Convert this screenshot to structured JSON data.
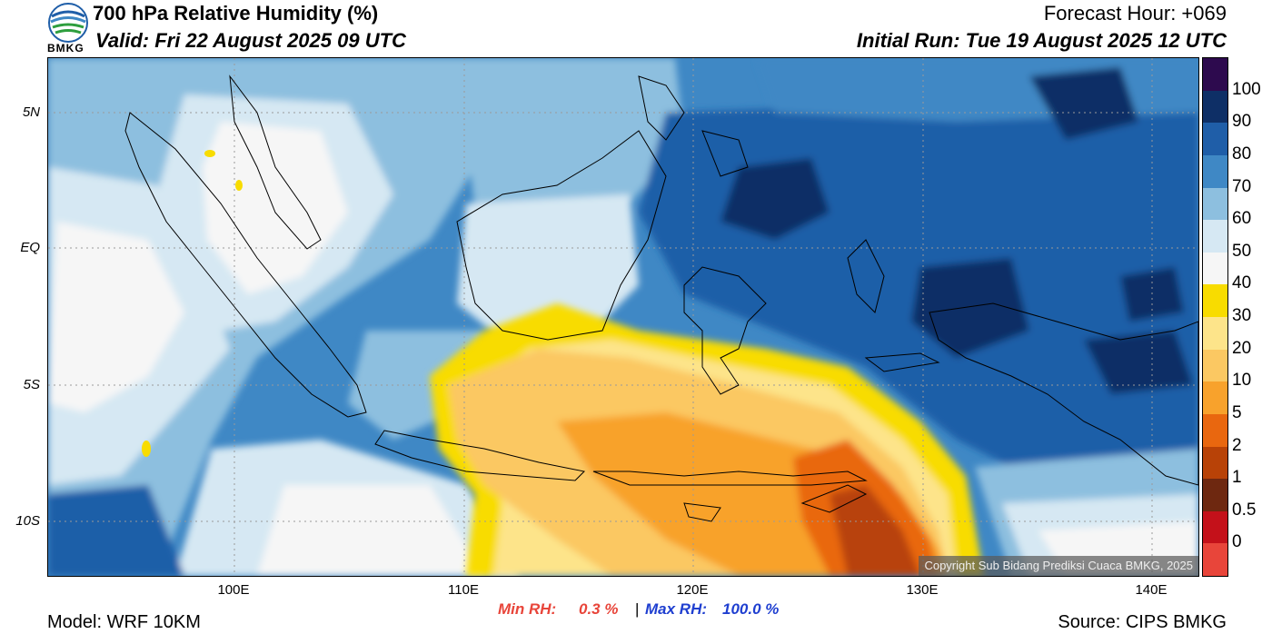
{
  "header": {
    "title": "700 hPa Relative Humidity (%)",
    "valid": "Valid: Fri 22 August 2025 09 UTC",
    "forecast_hour": "Forecast Hour: +069",
    "initial_run": "Initial Run: Tue 19 August 2025 12 UTC",
    "logo_text": "BMKG"
  },
  "map": {
    "y_ticks": [
      "5N",
      "EQ",
      "5S",
      "10S"
    ],
    "x_ticks": [
      "100E",
      "110E",
      "120E",
      "130E",
      "140E"
    ],
    "copyright": "Copyright Sub Bidang Prediksi Cuaca BMKG, 2025"
  },
  "colorbar": {
    "labels": [
      "100",
      "90",
      "80",
      "70",
      "60",
      "50",
      "40",
      "30",
      "20",
      "10",
      "5",
      "2",
      "1",
      "0.5",
      "0"
    ],
    "colors": [
      "#2d0a4e",
      "#0e2f66",
      "#1f5ea8",
      "#3f88c5",
      "#8dbfdf",
      "#d6e8f3",
      "#f6f6f6",
      "#f8dc00",
      "#fde48a",
      "#fbc862",
      "#f8a22c",
      "#e9670f",
      "#b84207",
      "#6e2810",
      "#c4111a",
      "#e8453a"
    ]
  },
  "stats": {
    "min_label": "Min RH:",
    "min_value": "0.3 %",
    "separator": "|",
    "max_label": "Max RH:",
    "max_value": "100.0 %",
    "min_color": "#e8453a",
    "max_color": "#1f3fd0"
  },
  "footer": {
    "model": "Model: WRF 10KM",
    "source": "Source: CIPS BMKG"
  }
}
